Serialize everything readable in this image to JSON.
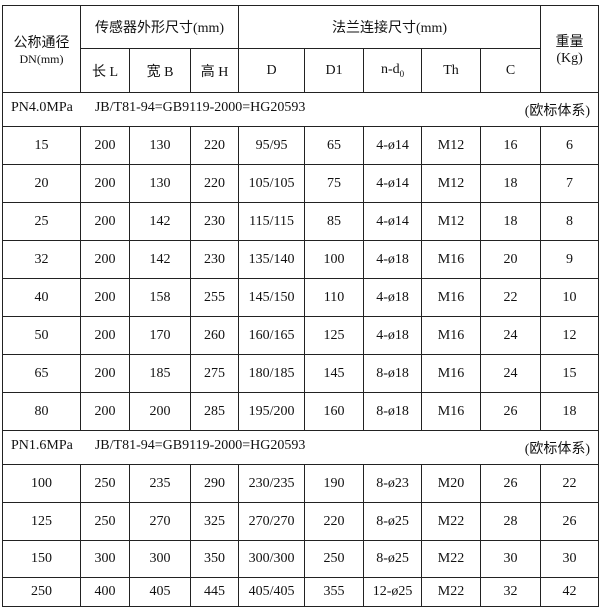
{
  "header": {
    "dn_label": "公称通径",
    "dn_unit": "DN(mm)",
    "sensor_group": "传感器外形尺寸(mm)",
    "flange_group": "法兰连接尺寸(mm)",
    "weight_label": "重量",
    "weight_unit": "(Kg)",
    "columns": [
      "长 L",
      "宽 B",
      "高 H",
      "D",
      "D1",
      "n-d",
      "Th",
      "C"
    ],
    "nd_subscript": "0"
  },
  "sections": [
    {
      "pressure": "PN4.0MPa",
      "standard": "JB/T81-94=GB9119-2000=HG20593",
      "system": "(欧标体系)",
      "rows": [
        [
          "15",
          "200",
          "130",
          "220",
          "95/95",
          "65",
          "4-ø14",
          "M12",
          "16",
          "6"
        ],
        [
          "20",
          "200",
          "130",
          "220",
          "105/105",
          "75",
          "4-ø14",
          "M12",
          "18",
          "7"
        ],
        [
          "25",
          "200",
          "142",
          "230",
          "115/115",
          "85",
          "4-ø14",
          "M12",
          "18",
          "8"
        ],
        [
          "32",
          "200",
          "142",
          "230",
          "135/140",
          "100",
          "4-ø18",
          "M16",
          "20",
          "9"
        ],
        [
          "40",
          "200",
          "158",
          "255",
          "145/150",
          "110",
          "4-ø18",
          "M16",
          "22",
          "10"
        ],
        [
          "50",
          "200",
          "170",
          "260",
          "160/165",
          "125",
          "4-ø18",
          "M16",
          "24",
          "12"
        ],
        [
          "65",
          "200",
          "185",
          "275",
          "180/185",
          "145",
          "8-ø18",
          "M16",
          "24",
          "15"
        ],
        [
          "80",
          "200",
          "200",
          "285",
          "195/200",
          "160",
          "8-ø18",
          "M16",
          "26",
          "18"
        ]
      ]
    },
    {
      "pressure": "PN1.6MPa",
      "standard": "JB/T81-94=GB9119-2000=HG20593",
      "system": "(欧标体系)",
      "rows": [
        [
          "100",
          "250",
          "235",
          "290",
          "230/235",
          "190",
          "8-ø23",
          "M20",
          "26",
          "22"
        ],
        [
          "125",
          "250",
          "270",
          "325",
          "270/270",
          "220",
          "8-ø25",
          "M22",
          "28",
          "26"
        ],
        [
          "150",
          "300",
          "300",
          "350",
          "300/300",
          "250",
          "8-ø25",
          "M22",
          "30",
          "30"
        ],
        [
          "250",
          "400",
          "405",
          "445",
          "405/405",
          "355",
          "12-ø25",
          "M22",
          "32",
          "42"
        ]
      ]
    }
  ]
}
